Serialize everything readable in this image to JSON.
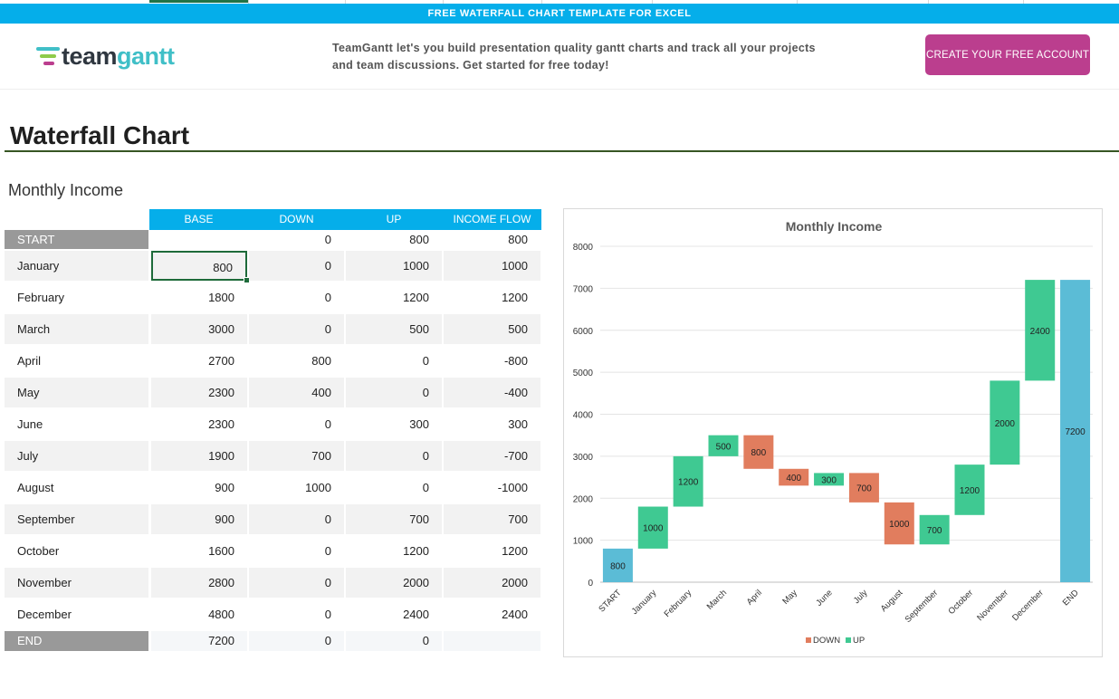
{
  "banner": {
    "text": "FREE WATERFALL CHART TEMPLATE FOR EXCEL"
  },
  "promo": {
    "logo_part1": "team",
    "logo_part2": "gantt",
    "line1": "TeamGantt let's you build presentation quality gantt charts and track all your projects",
    "line2": "and team discussions. Get started for free today!",
    "cta_label": "CREATE YOUR FREE ACCOUNT",
    "colors": {
      "banner": "#05aeea",
      "cta": "#bb3e8e",
      "logo_dark": "#2f3740",
      "logo_teal": "#40bfc7"
    }
  },
  "page_title": "Waterfall Chart",
  "section_title": "Monthly Income",
  "table": {
    "headers": [
      "BASE",
      "DOWN",
      "UP",
      "INCOME FLOW"
    ],
    "rows": [
      {
        "label": "START",
        "base": "",
        "down": "0",
        "up": "800",
        "flow": "800"
      },
      {
        "label": "January",
        "base": "800",
        "down": "0",
        "up": "1000",
        "flow": "1000"
      },
      {
        "label": "February",
        "base": "1800",
        "down": "0",
        "up": "1200",
        "flow": "1200"
      },
      {
        "label": "March",
        "base": "3000",
        "down": "0",
        "up": "500",
        "flow": "500"
      },
      {
        "label": "April",
        "base": "2700",
        "down": "800",
        "up": "0",
        "flow": "-800"
      },
      {
        "label": "May",
        "base": "2300",
        "down": "400",
        "up": "0",
        "flow": "-400"
      },
      {
        "label": "June",
        "base": "2300",
        "down": "0",
        "up": "300",
        "flow": "300"
      },
      {
        "label": "July",
        "base": "1900",
        "down": "700",
        "up": "0",
        "flow": "-700"
      },
      {
        "label": "August",
        "base": "900",
        "down": "1000",
        "up": "0",
        "flow": "-1000"
      },
      {
        "label": "September",
        "base": "900",
        "down": "0",
        "up": "700",
        "flow": "700"
      },
      {
        "label": "October",
        "base": "1600",
        "down": "0",
        "up": "1200",
        "flow": "1200"
      },
      {
        "label": "November",
        "base": "2800",
        "down": "0",
        "up": "2000",
        "flow": "2000"
      },
      {
        "label": "December",
        "base": "4800",
        "down": "0",
        "up": "2400",
        "flow": "2400"
      },
      {
        "label": "END",
        "base": "7200",
        "down": "0",
        "up": "0",
        "flow": ""
      }
    ]
  },
  "chart_data": {
    "type": "bar",
    "title": "Monthly Income",
    "categories": [
      "START",
      "January",
      "February",
      "March",
      "April",
      "May",
      "June",
      "July",
      "August",
      "September",
      "October",
      "November",
      "December",
      "END"
    ],
    "series": [
      {
        "name": "BASE",
        "values": [
          0,
          800,
          1800,
          3000,
          2700,
          2300,
          2300,
          1900,
          900,
          900,
          1600,
          2800,
          4800,
          0
        ]
      },
      {
        "name": "DOWN",
        "values": [
          0,
          0,
          0,
          0,
          800,
          400,
          0,
          700,
          1000,
          0,
          0,
          0,
          0,
          0
        ]
      },
      {
        "name": "UP",
        "values": [
          800,
          1000,
          1200,
          500,
          0,
          0,
          300,
          0,
          0,
          700,
          1200,
          2000,
          2400,
          7200
        ]
      }
    ],
    "ylim": [
      0,
      8000
    ],
    "yticks": [
      0,
      1000,
      2000,
      3000,
      4000,
      5000,
      6000,
      7000,
      8000
    ],
    "legend": [
      "DOWN",
      "UP"
    ],
    "legend_position": "bottom",
    "grid": true,
    "colors": {
      "down": "#e17d5e",
      "up": "#3fc992",
      "total": "#5bbcd6"
    }
  }
}
